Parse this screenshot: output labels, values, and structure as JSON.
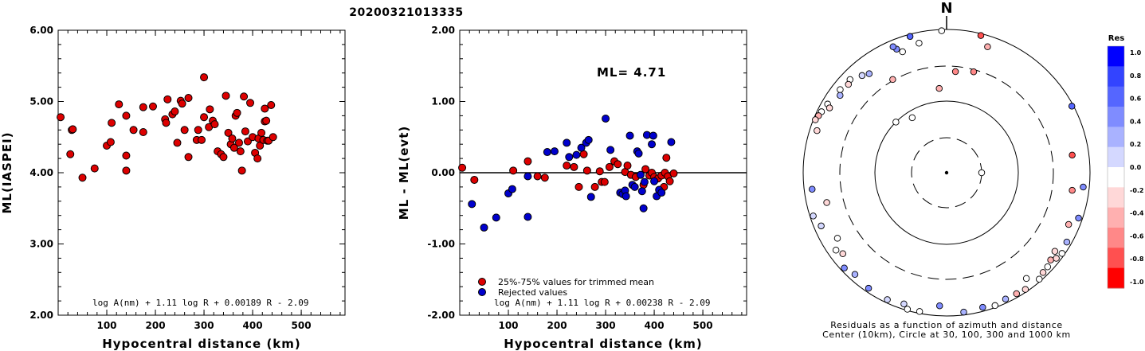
{
  "title": "20200321013335",
  "chart_data": [
    {
      "type": "scatter",
      "xlabel": "Hypocentral distance (km)",
      "ylabel": "ML(IASPEI)",
      "xlim": [
        0,
        590
      ],
      "ylim": [
        2.0,
        6.0
      ],
      "xticks": [
        "100",
        "200",
        "300",
        "400",
        "500"
      ],
      "yticks": [
        "2.00",
        "3.00",
        "4.00",
        "5.00",
        "6.00"
      ],
      "formula": "log A(nm) + 1.11 log R + 0.00189 R - 2.09",
      "point_color": "#dd0000",
      "points": [
        [
          5,
          4.78
        ],
        [
          25,
          4.26
        ],
        [
          28,
          4.6
        ],
        [
          30,
          4.61
        ],
        [
          50,
          3.93
        ],
        [
          75,
          4.06
        ],
        [
          100,
          4.38
        ],
        [
          108,
          4.43
        ],
        [
          110,
          4.7
        ],
        [
          125,
          4.96
        ],
        [
          140,
          4.24
        ],
        [
          140,
          4.03
        ],
        [
          140,
          4.8
        ],
        [
          155,
          4.6
        ],
        [
          175,
          4.92
        ],
        [
          175,
          4.57
        ],
        [
          195,
          4.93
        ],
        [
          220,
          4.75
        ],
        [
          222,
          4.7
        ],
        [
          225,
          5.03
        ],
        [
          235,
          4.82
        ],
        [
          240,
          4.86
        ],
        [
          245,
          4.42
        ],
        [
          252,
          5.01
        ],
        [
          255,
          4.97
        ],
        [
          260,
          4.6
        ],
        [
          268,
          5.05
        ],
        [
          268,
          4.22
        ],
        [
          285,
          4.46
        ],
        [
          288,
          4.6
        ],
        [
          295,
          4.46
        ],
        [
          300,
          5.34
        ],
        [
          300,
          4.78
        ],
        [
          310,
          4.64
        ],
        [
          312,
          4.89
        ],
        [
          318,
          4.73
        ],
        [
          322,
          4.68
        ],
        [
          328,
          4.3
        ],
        [
          335,
          4.26
        ],
        [
          340,
          4.22
        ],
        [
          345,
          5.08
        ],
        [
          350,
          4.56
        ],
        [
          355,
          4.4
        ],
        [
          358,
          4.48
        ],
        [
          362,
          4.35
        ],
        [
          365,
          4.8
        ],
        [
          368,
          4.84
        ],
        [
          372,
          4.42
        ],
        [
          375,
          4.3
        ],
        [
          378,
          4.03
        ],
        [
          382,
          5.07
        ],
        [
          385,
          4.58
        ],
        [
          390,
          4.44
        ],
        [
          395,
          4.98
        ],
        [
          400,
          4.5
        ],
        [
          405,
          4.28
        ],
        [
          410,
          4.2
        ],
        [
          412,
          4.48
        ],
        [
          415,
          4.38
        ],
        [
          418,
          4.56
        ],
        [
          422,
          4.46
        ],
        [
          425,
          4.72
        ],
        [
          425,
          4.9
        ],
        [
          428,
          4.73
        ],
        [
          430,
          4.45
        ],
        [
          433,
          4.45
        ],
        [
          438,
          4.95
        ],
        [
          442,
          4.5
        ]
      ]
    },
    {
      "type": "scatter",
      "xlabel": "Hypocentral distance (km)",
      "ylabel": "ML - ML(evt)",
      "xlim": [
        0,
        590
      ],
      "ylim": [
        -2.0,
        2.0
      ],
      "xticks": [
        "100",
        "200",
        "300",
        "400",
        "500"
      ],
      "yticks": [
        "-2.00",
        "-1.00",
        "0.00",
        "1.00",
        "2.00"
      ],
      "annotation": "ML= 4.71",
      "formula": "log A(nm) + 1.11 log R + 0.00238 R - 2.09",
      "zero_line": 0,
      "series": [
        {
          "name": "25%-75% values for trimmed mean",
          "color": "#dd0000",
          "points": [
            [
              5,
              0.07
            ],
            [
              30,
              -0.1
            ],
            [
              110,
              0.03
            ],
            [
              140,
              0.16
            ],
            [
              160,
              -0.05
            ],
            [
              175,
              -0.07
            ],
            [
              220,
              0.1
            ],
            [
              235,
              0.08
            ],
            [
              245,
              -0.2
            ],
            [
              255,
              0.26
            ],
            [
              262,
              0.03
            ],
            [
              278,
              -0.2
            ],
            [
              288,
              0.02
            ],
            [
              292,
              -0.13
            ],
            [
              298,
              -0.13
            ],
            [
              308,
              0.08
            ],
            [
              318,
              0.16
            ],
            [
              325,
              0.12
            ],
            [
              340,
              0.01
            ],
            [
              345,
              0.1
            ],
            [
              352,
              -0.03
            ],
            [
              362,
              -0.06
            ],
            [
              378,
              -0.17
            ],
            [
              382,
              0.05
            ],
            [
              390,
              -0.04
            ],
            [
              395,
              0.0
            ],
            [
              400,
              -0.06
            ],
            [
              408,
              -0.08
            ],
            [
              415,
              -0.04
            ],
            [
              420,
              -0.2
            ],
            [
              422,
              0.0
            ],
            [
              425,
              0.21
            ],
            [
              428,
              -0.05
            ],
            [
              432,
              -0.12
            ],
            [
              440,
              -0.01
            ]
          ]
        },
        {
          "name": "Rejected values",
          "color": "#0000cc",
          "points": [
            [
              25,
              -0.44
            ],
            [
              50,
              -0.77
            ],
            [
              75,
              -0.63
            ],
            [
              100,
              -0.29
            ],
            [
              108,
              -0.23
            ],
            [
              140,
              -0.62
            ],
            [
              140,
              -0.05
            ],
            [
              180,
              0.29
            ],
            [
              195,
              0.3
            ],
            [
              220,
              0.42
            ],
            [
              225,
              0.22
            ],
            [
              240,
              0.25
            ],
            [
              250,
              0.35
            ],
            [
              260,
              0.42
            ],
            [
              265,
              0.46
            ],
            [
              270,
              -0.34
            ],
            [
              300,
              0.76
            ],
            [
              310,
              0.32
            ],
            [
              330,
              -0.28
            ],
            [
              335,
              -0.3
            ],
            [
              340,
              -0.25
            ],
            [
              342,
              -0.33
            ],
            [
              350,
              0.52
            ],
            [
              355,
              -0.17
            ],
            [
              360,
              -0.2
            ],
            [
              365,
              0.3
            ],
            [
              368,
              0.27
            ],
            [
              372,
              -0.03
            ],
            [
              375,
              -0.26
            ],
            [
              378,
              -0.5
            ],
            [
              380,
              -0.13
            ],
            [
              385,
              0.53
            ],
            [
              395,
              0.4
            ],
            [
              398,
              0.52
            ],
            [
              400,
              -0.12
            ],
            [
              405,
              -0.33
            ],
            [
              410,
              -0.24
            ],
            [
              415,
              -0.28
            ],
            [
              435,
              0.43
            ]
          ]
        }
      ]
    },
    {
      "type": "polar-scatter",
      "north_label": "N",
      "caption_line1": "Residuals as a function of azimuth and distance",
      "caption_line2": "Center (10km), Circle at 30, 100, 300 and 1000 km",
      "colorbar": {
        "title": "Res",
        "ticks": [
          "1.0",
          "0.8",
          "0.6",
          "0.4",
          "0.2",
          "0.0",
          "-0.2",
          "-0.4",
          "-0.6",
          "-0.8",
          "-1.0"
        ],
        "colors": [
          "#0000ff",
          "#3344ff",
          "#5566ff",
          "#7f8cff",
          "#a9b2ff",
          "#d4d8ff",
          "#ffffff",
          "#ffd8d8",
          "#ffb0b0",
          "#ff8888",
          "#ff5050",
          "#ff0000"
        ]
      },
      "center_station": {
        "color": "#ffffff"
      },
      "points": [
        {
          "azimuth": 90,
          "distance": 30,
          "res": 0.0
        },
        {
          "azimuth": 328,
          "distance": 80,
          "res": 0.0
        },
        {
          "azimuth": 315,
          "distance": 100,
          "res": -0.1
        },
        {
          "azimuth": 355,
          "distance": 150,
          "res": -0.5
        },
        {
          "azimuth": 15,
          "distance": 280,
          "res": -0.6
        },
        {
          "azimuth": 330,
          "distance": 310,
          "res": -0.5
        },
        {
          "azimuth": 5,
          "distance": 255,
          "res": -0.6
        },
        {
          "azimuth": 18,
          "distance": 700,
          "res": -0.5
        },
        {
          "azimuth": 348,
          "distance": 700,
          "res": 0.0
        },
        {
          "azimuth": 338,
          "distance": 720,
          "res": 0.5
        },
        {
          "azimuth": 340,
          "distance": 620,
          "res": 0.0
        },
        {
          "azimuth": 337,
          "distance": 810,
          "res": 0.5
        },
        {
          "azimuth": 322,
          "distance": 560,
          "res": 0.3
        },
        {
          "azimuth": 319,
          "distance": 620,
          "res": 0.1
        },
        {
          "azimuth": 314,
          "distance": 740,
          "res": 0.0
        },
        {
          "azimuth": 312,
          "distance": 690,
          "res": -0.2
        },
        {
          "azimuth": 308,
          "distance": 760,
          "res": 0.0
        },
        {
          "azimuth": 306,
          "distance": 680,
          "res": 0.3
        },
        {
          "azimuth": 300,
          "distance": 820,
          "res": 0.0
        },
        {
          "azimuth": 299,
          "distance": 730,
          "res": -0.3
        },
        {
          "azimuth": 296,
          "distance": 870,
          "res": 0.0
        },
        {
          "azimuth": 294,
          "distance": 900,
          "res": -0.4
        },
        {
          "azimuth": 292,
          "distance": 940,
          "res": -0.3
        },
        {
          "azimuth": 288,
          "distance": 790,
          "res": -0.3
        },
        {
          "azimuth": 263,
          "distance": 770,
          "res": 0.4
        },
        {
          "azimuth": 256,
          "distance": 520,
          "res": -0.3
        },
        {
          "azimuth": 252,
          "distance": 900,
          "res": 0.1
        },
        {
          "azimuth": 247,
          "distance": 790,
          "res": 0.1
        },
        {
          "azimuth": 239,
          "distance": 590,
          "res": 0.0
        },
        {
          "azimuth": 235,
          "distance": 760,
          "res": 0.0
        },
        {
          "azimuth": 232,
          "distance": 680,
          "res": -0.2
        },
        {
          "azimuth": 227,
          "distance": 890,
          "res": 0.4
        },
        {
          "azimuth": 222,
          "distance": 810,
          "res": 0.2
        },
        {
          "azimuth": 214,
          "distance": 880,
          "res": 0.5
        },
        {
          "azimuth": 205,
          "distance": 900,
          "res": 0.1
        },
        {
          "azimuth": 198,
          "distance": 840,
          "res": 0.1
        },
        {
          "azimuth": 196,
          "distance": 960,
          "res": 0.0
        },
        {
          "azimuth": 191,
          "distance": 940,
          "res": 0.0
        },
        {
          "azimuth": 183,
          "distance": 720,
          "res": 0.5
        },
        {
          "azimuth": 173,
          "distance": 910,
          "res": 0.3
        },
        {
          "azimuth": 165,
          "distance": 880,
          "res": 0.5
        },
        {
          "azimuth": 160,
          "distance": 940,
          "res": 0.0
        },
        {
          "azimuth": 155,
          "distance": 880,
          "res": 0.2
        },
        {
          "azimuth": 150,
          "distance": 890,
          "res": -0.5
        },
        {
          "azimuth": 146,
          "distance": 920,
          "res": -0.3
        },
        {
          "azimuth": 143,
          "distance": 700,
          "res": 0.0
        },
        {
          "azimuth": 139,
          "distance": 930,
          "res": -0.1
        },
        {
          "azimuth": 136,
          "distance": 860,
          "res": -0.2
        },
        {
          "azimuth": 133,
          "distance": 840,
          "res": 0.0
        },
        {
          "azimuth": 130,
          "distance": 780,
          "res": -0.4
        },
        {
          "azimuth": 128,
          "distance": 870,
          "res": -0.3
        },
        {
          "azimuth": 126,
          "distance": 730,
          "res": -0.2
        },
        {
          "azimuth": 125,
          "distance": 920,
          "res": 0.0
        },
        {
          "azimuth": 120,
          "distance": 860,
          "res": 0.2
        },
        {
          "azimuth": 113,
          "distance": 700,
          "res": -0.4
        },
        {
          "azimuth": 109,
          "distance": 880,
          "res": 0.5
        },
        {
          "azimuth": 96,
          "distance": 820,
          "res": 0.5
        },
        {
          "azimuth": 98,
          "distance": 580,
          "res": -0.7
        },
        {
          "azimuth": 82,
          "distance": 580,
          "res": -0.8
        },
        {
          "azimuth": 62,
          "distance": 950,
          "res": 0.6
        },
        {
          "azimuth": 345,
          "distance": 930,
          "res": 0.6
        },
        {
          "azimuth": 358,
          "distance": 960,
          "res": 0.0
        },
        {
          "azimuth": 14,
          "distance": 940,
          "res": -0.8
        }
      ]
    }
  ]
}
